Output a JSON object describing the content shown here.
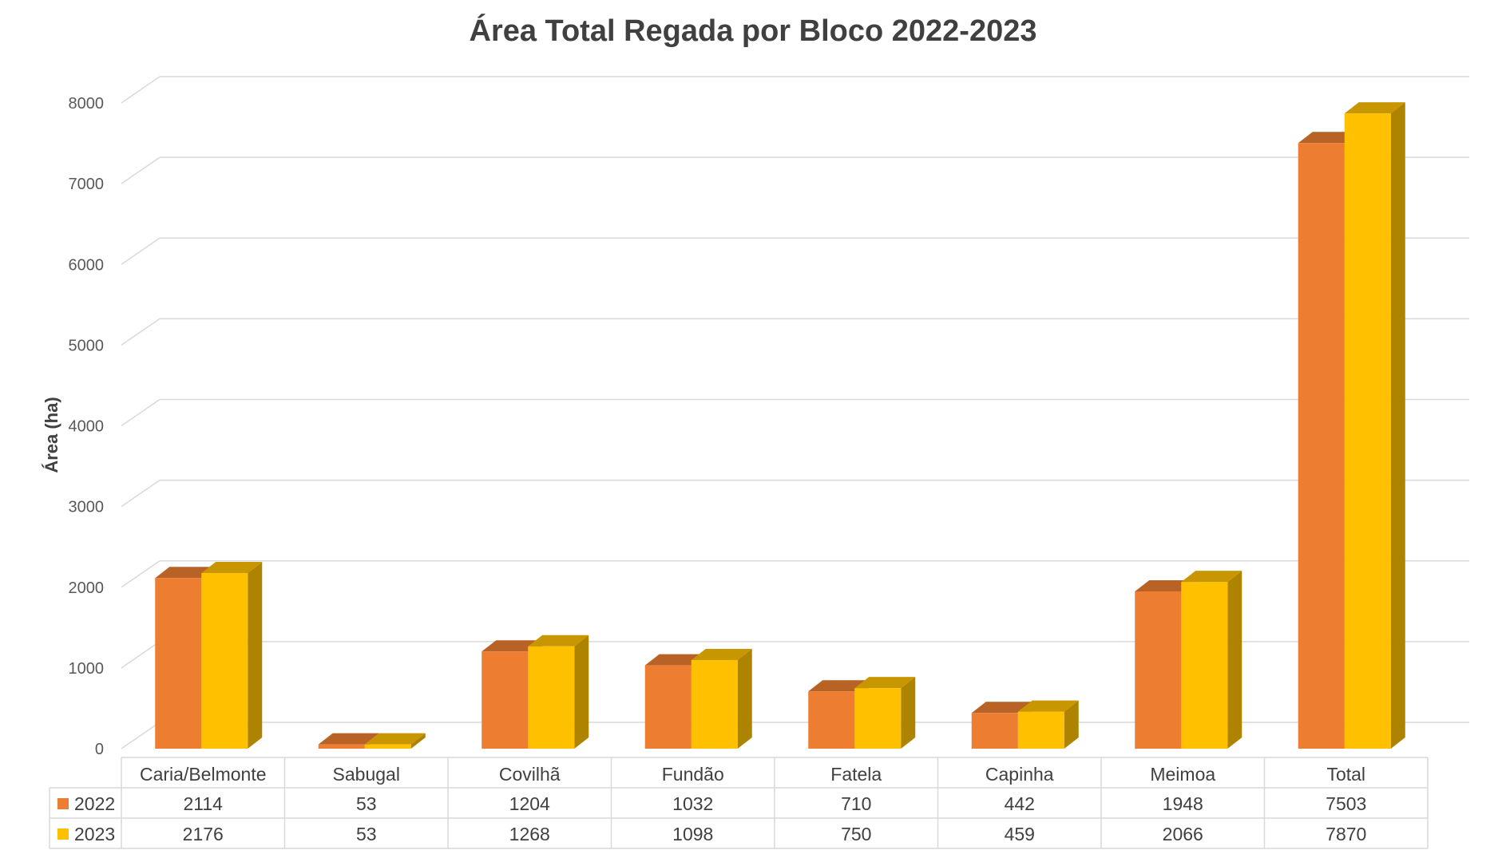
{
  "chart_data": {
    "type": "bar",
    "title": "Área Total Regada por Bloco 2022-2023",
    "ylabel": "Área (ha)",
    "xlabel": "",
    "ylim": [
      0,
      8000
    ],
    "yticks": [
      0,
      1000,
      2000,
      3000,
      4000,
      5000,
      6000,
      7000,
      8000
    ],
    "grid": true,
    "legend": "data-table",
    "categories": [
      "Caria/Belmonte",
      "Sabugal",
      "Covilhã",
      "Fundão",
      "Fatela",
      "Capinha",
      "Meimoa",
      "Total"
    ],
    "series": [
      {
        "name": "2022",
        "color": "#ED7D31",
        "values": [
          2114,
          53,
          1204,
          1032,
          710,
          442,
          1948,
          7503
        ]
      },
      {
        "name": "2023",
        "color": "#FFC000",
        "values": [
          2176,
          53,
          1268,
          1098,
          750,
          459,
          2066,
          7870
        ]
      }
    ]
  }
}
